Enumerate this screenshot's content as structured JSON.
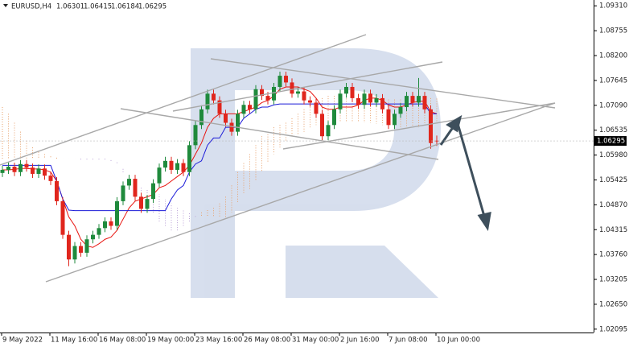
{
  "chart_data": {
    "type": "candlestick",
    "symbol": "EURUSD,H4",
    "categories": [
      "9 May 2022",
      null,
      null,
      null,
      null,
      null,
      null,
      null,
      "11 May 16:00",
      null,
      null,
      null,
      null,
      null,
      null,
      null,
      "16 May 08:00",
      null,
      null,
      null,
      null,
      null,
      null,
      null,
      "19 May 00:00",
      null,
      null,
      null,
      null,
      null,
      null,
      null,
      "23 May 16:00",
      null,
      null,
      null,
      null,
      null,
      null,
      null,
      "26 May 08:00",
      null,
      null,
      null,
      null,
      null,
      null,
      null,
      "31 May 00:00",
      null,
      null,
      null,
      null,
      null,
      null,
      null,
      "2 Jun 16:00",
      null,
      null,
      null,
      null,
      null,
      null,
      null,
      "7 Jun 08:00",
      null,
      null,
      null,
      null,
      null,
      null,
      null,
      "10 Jun 00:00"
    ],
    "open": [
      1.0558,
      1.0565,
      1.0572,
      1.056,
      1.0578,
      1.057,
      1.0556,
      1.0568,
      1.0552,
      1.054,
      1.0495,
      1.042,
      1.0365,
      1.0395,
      1.038,
      1.041,
      1.042,
      1.0435,
      1.045,
      1.044,
      1.0495,
      1.053,
      1.0545,
      1.0505,
      1.0478,
      1.05,
      1.0535,
      1.057,
      1.0585,
      1.0565,
      1.058,
      1.056,
      1.062,
      1.0665,
      1.07,
      1.0735,
      1.072,
      1.069,
      1.067,
      1.065,
      1.069,
      1.071,
      1.07,
      1.0745,
      1.073,
      1.072,
      1.075,
      1.0775,
      1.076,
      1.0735,
      1.074,
      1.072,
      1.0715,
      1.069,
      1.064,
      1.0665,
      1.07,
      1.0735,
      1.075,
      1.0725,
      1.071,
      1.0735,
      1.0715,
      1.0725,
      1.07,
      1.0665,
      1.069,
      1.0705,
      1.073,
      1.0715,
      1.073,
      1.07,
      1.06301
    ],
    "high": [
      1.0574,
      1.0581,
      1.0581,
      1.0587,
      1.0587,
      1.0579,
      1.0577,
      1.0577,
      1.0561,
      1.0549,
      1.0504,
      1.0429,
      1.0404,
      1.0404,
      1.0419,
      1.0429,
      1.0444,
      1.0459,
      1.0459,
      1.0504,
      1.0539,
      1.0554,
      1.0554,
      1.0514,
      1.0509,
      1.0544,
      1.0579,
      1.0594,
      1.0594,
      1.0589,
      1.0589,
      1.0629,
      1.0674,
      1.0709,
      1.0744,
      1.0744,
      1.0729,
      1.0699,
      1.0679,
      1.0699,
      1.0719,
      1.0719,
      1.0754,
      1.0754,
      1.0739,
      1.0759,
      1.0784,
      1.0784,
      1.0769,
      1.0749,
      1.0749,
      1.0729,
      1.0724,
      1.0699,
      1.0674,
      1.0709,
      1.0744,
      1.0759,
      1.0759,
      1.0734,
      1.0744,
      1.0744,
      1.0734,
      1.0734,
      1.0709,
      1.0699,
      1.0714,
      1.0739,
      1.0739,
      1.077,
      1.0739,
      1.0709,
      1.06415
    ],
    "low": [
      1.0549,
      1.0556,
      1.0551,
      1.0551,
      1.0561,
      1.0547,
      1.0547,
      1.0543,
      1.0531,
      1.0486,
      1.0411,
      1.035,
      1.0356,
      1.0371,
      1.0371,
      1.0401,
      1.0411,
      1.0426,
      1.0431,
      1.0431,
      1.0486,
      1.0521,
      1.0496,
      1.0469,
      1.0469,
      1.0491,
      1.0526,
      1.0561,
      1.0556,
      1.0556,
      1.0551,
      1.0551,
      1.0611,
      1.0656,
      1.0691,
      1.0711,
      1.0681,
      1.0661,
      1.0641,
      1.0641,
      1.0681,
      1.0691,
      1.0691,
      1.0721,
      1.0711,
      1.0711,
      1.0741,
      1.0751,
      1.0726,
      1.0726,
      1.0711,
      1.0706,
      1.0681,
      1.0631,
      1.0631,
      1.0656,
      1.0691,
      1.0726,
      1.0716,
      1.0701,
      1.0701,
      1.0706,
      1.0706,
      1.0691,
      1.0656,
      1.0656,
      1.0681,
      1.0696,
      1.0706,
      1.0706,
      1.0691,
      1.0612,
      1.06184
    ],
    "close": [
      1.0565,
      1.0572,
      1.056,
      1.0578,
      1.057,
      1.0556,
      1.0568,
      1.0552,
      1.054,
      1.0495,
      1.042,
      1.0365,
      1.0395,
      1.038,
      1.041,
      1.042,
      1.0435,
      1.045,
      1.044,
      1.0495,
      1.053,
      1.0545,
      1.0505,
      1.0478,
      1.05,
      1.0535,
      1.057,
      1.0585,
      1.0565,
      1.058,
      1.056,
      1.062,
      1.0665,
      1.07,
      1.0735,
      1.072,
      1.069,
      1.067,
      1.065,
      1.069,
      1.071,
      1.07,
      1.0745,
      1.073,
      1.072,
      1.075,
      1.0775,
      1.076,
      1.0735,
      1.074,
      1.072,
      1.0715,
      1.069,
      1.064,
      1.0665,
      1.07,
      1.0735,
      1.075,
      1.0725,
      1.071,
      1.0735,
      1.0715,
      1.0725,
      1.07,
      1.0665,
      1.069,
      1.0705,
      1.073,
      1.0715,
      1.073,
      1.07,
      1.0625,
      1.06295
    ],
    "up_color": "#1f8a3c",
    "down_color": "#e0261d",
    "series": [
      {
        "color": "#e8140f",
        "values": [
          1.0565,
          1.0565,
          1.0566,
          1.0568,
          1.0568,
          1.0567,
          1.0567,
          1.0565,
          1.056,
          1.054,
          1.05,
          1.046,
          1.044,
          1.041,
          1.0395,
          1.0392,
          1.04,
          1.041,
          1.0415,
          1.043,
          1.0455,
          1.048,
          1.0495,
          1.05,
          1.0505,
          1.051,
          1.0525,
          1.053,
          1.054,
          1.055,
          1.056,
          1.0575,
          1.06,
          1.0625,
          1.066,
          1.068,
          1.069,
          1.069,
          1.069,
          1.069,
          1.0695,
          1.07,
          1.0705,
          1.0715,
          1.072,
          1.073,
          1.0745,
          1.075,
          1.075,
          1.075,
          1.0745,
          1.074,
          1.0725,
          1.0705,
          1.07,
          1.07,
          1.0705,
          1.0705,
          1.0705,
          1.071,
          1.072,
          1.0725,
          1.0725,
          1.072,
          1.071,
          1.0705,
          1.0705,
          1.071,
          1.0715,
          1.0718,
          1.0718,
          1.0695,
          1.069
        ]
      },
      {
        "color": "#1b1bd8",
        "values": [
          1.0575,
          1.0575,
          1.0575,
          1.0575,
          1.0575,
          1.0575,
          1.0575,
          1.0575,
          1.0575,
          1.054,
          1.05,
          1.0475,
          1.0474,
          1.0474,
          1.0474,
          1.0474,
          1.0474,
          1.0474,
          1.0474,
          1.0474,
          1.0474,
          1.0474,
          1.0474,
          1.0474,
          1.0474,
          1.0474,
          1.0474,
          1.0474,
          1.05,
          1.052,
          1.053,
          1.056,
          1.0578,
          1.0585,
          1.062,
          1.0636,
          1.0636,
          1.066,
          1.066,
          1.066,
          1.068,
          1.069,
          1.07,
          1.0705,
          1.0705,
          1.071,
          1.0712,
          1.0712,
          1.0712,
          1.0712,
          1.0712,
          1.0712,
          1.0712,
          1.0712,
          1.0712,
          1.0712,
          1.0712,
          1.0712,
          1.0712,
          1.0712,
          1.0712,
          1.0712,
          1.0712,
          1.0712,
          1.0712,
          1.0712,
          1.0712,
          1.0712,
          1.0712,
          1.0712,
          1.0712,
          1.069,
          1.069
        ]
      }
    ],
    "cloud": {
      "up_color": "#e8a06a",
      "down_color": "#b9a0d6",
      "span_a": [
        1.0705,
        1.069,
        1.067,
        1.065,
        1.063,
        1.0615,
        1.0605,
        1.06,
        1.0595,
        1.0592,
        1.059,
        1.059,
        1.059,
        1.0588,
        1.0588,
        1.0588,
        1.0588,
        1.0588,
        1.0585,
        1.058,
        1.056,
        1.052,
        1.05,
        1.048,
        1.0475,
        1.047,
        1.045,
        1.044,
        1.043,
        1.043,
        1.044,
        1.045,
        1.046,
        1.047,
        1.0475,
        1.048,
        1.049,
        1.0505,
        1.053,
        1.056,
        1.058,
        1.06,
        1.062,
        1.064,
        1.065,
        1.066,
        1.0665,
        1.067,
        1.068,
        1.069,
        1.07,
        1.071,
        1.072,
        1.0725,
        1.073,
        1.073,
        1.0735,
        1.0735,
        1.0735,
        1.0735,
        1.0735,
        1.073,
        1.0728,
        1.0725,
        1.0722,
        1.0722,
        1.0722,
        1.0724,
        1.0725,
        1.0725,
        1.0725,
        1.0725,
        1.0724
      ],
      "span_b": [
        1.059,
        1.059,
        1.059,
        1.059,
        1.059,
        1.059,
        1.059,
        1.059,
        1.059,
        1.059,
        1.059,
        1.059,
        1.059,
        1.059,
        1.059,
        1.059,
        1.059,
        1.059,
        1.059,
        1.0585,
        1.057,
        1.0545,
        1.053,
        1.0525,
        1.052,
        1.0515,
        1.051,
        1.05,
        1.049,
        1.048,
        1.0475,
        1.047,
        1.0465,
        1.0462,
        1.046,
        1.046,
        1.046,
        1.046,
        1.047,
        1.049,
        1.051,
        1.052,
        1.054,
        1.056,
        1.058,
        1.06,
        1.0615,
        1.063,
        1.064,
        1.0645,
        1.065,
        1.066,
        1.0665,
        1.0668,
        1.067,
        1.0672,
        1.0672,
        1.0672,
        1.0672,
        1.0672,
        1.067,
        1.067,
        1.0668,
        1.0665,
        1.0662,
        1.066,
        1.066,
        1.066,
        1.066,
        1.066,
        1.0662,
        1.0665,
        1.0668
      ]
    },
    "ylim": [
      1.0202,
      1.0944
    ],
    "yticks": [
      {
        "value": 1.0931,
        "label": "1.09310"
      },
      1.08755,
      {
        "value": 1.082,
        "label": "1.08200"
      },
      1.07645,
      {
        "value": 1.0709,
        "label": "1.07090"
      },
      1.06535,
      {
        "value": 1.0598,
        "label": "1.05980"
      },
      1.05425,
      {
        "value": 1.0487,
        "label": "1.04870"
      },
      1.04315,
      {
        "value": 1.0376,
        "label": "1.03760"
      },
      1.03205,
      {
        "value": 1.0265,
        "label": "1.02650"
      },
      1.02095
    ],
    "grid": false
  }
}
